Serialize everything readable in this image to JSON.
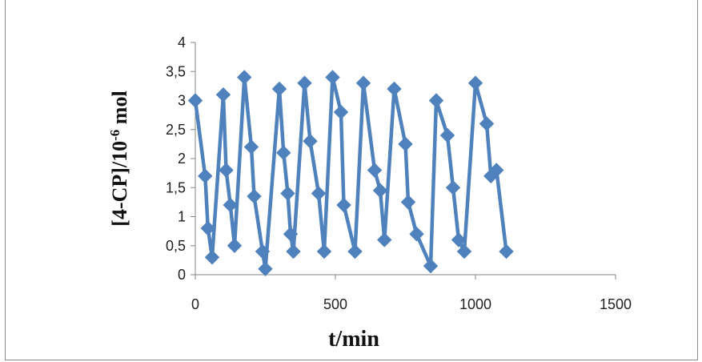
{
  "chart_data": {
    "type": "line",
    "xlabel": "t/min",
    "ylabel": {
      "main": "[4-CP]/10",
      "exponent": "-6",
      "unit": " mol"
    },
    "xlim": [
      0,
      1500
    ],
    "ylim": [
      0,
      4
    ],
    "x_ticks": [
      "0",
      "500",
      "1000",
      "1500"
    ],
    "y_ticks": [
      "0",
      "0,5",
      "1",
      "1,5",
      "2",
      "2,5",
      "3",
      "3,5",
      "4"
    ],
    "grid": false,
    "legend": "none",
    "marker": "diamond",
    "color": "#4f81bd",
    "series": [
      {
        "x": [
          0,
          35,
          45,
          60,
          100,
          110,
          125,
          140,
          175,
          200,
          210,
          240,
          250,
          300,
          315,
          330,
          340,
          350,
          390,
          410,
          440,
          460,
          490,
          520,
          530,
          570,
          600,
          640,
          660,
          675,
          710,
          750,
          760,
          790,
          840,
          860,
          900,
          920,
          940,
          960,
          1000,
          1040,
          1055,
          1075,
          1110
        ],
        "y": [
          3.0,
          1.7,
          0.8,
          0.3,
          3.1,
          1.8,
          1.2,
          0.5,
          3.4,
          2.2,
          1.35,
          0.4,
          0.1,
          3.2,
          2.1,
          1.4,
          0.7,
          0.4,
          3.3,
          2.3,
          1.4,
          0.4,
          3.4,
          2.8,
          1.2,
          0.4,
          3.3,
          1.8,
          1.45,
          0.6,
          3.2,
          2.25,
          1.25,
          0.7,
          0.15,
          3.0,
          2.4,
          1.5,
          0.6,
          0.4,
          3.3,
          2.6,
          1.7,
          1.8,
          0.4
        ]
      }
    ]
  }
}
